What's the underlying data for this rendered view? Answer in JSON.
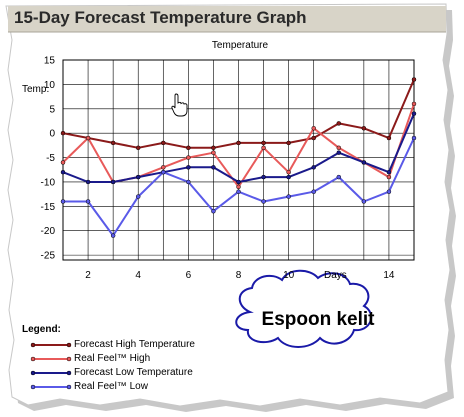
{
  "header": {
    "title": "15-Day Forecast Temperature Graph"
  },
  "legend": {
    "title": "Legend:",
    "items": [
      {
        "label": "Forecast High Temperature",
        "color": "#8b1a1a"
      },
      {
        "label": "Real Feel™ High",
        "color": "#e85a5a"
      },
      {
        "label": "Forecast Low Temperature",
        "color": "#1a1a8b"
      },
      {
        "label": "Real Feel™ Low",
        "color": "#5a5ae8"
      }
    ]
  },
  "callout": {
    "text": "Espoon kelit"
  },
  "chart_data": {
    "type": "line",
    "title": "Temperature",
    "ylabel": "Temp.",
    "xlabel": "Days",
    "xlim": [
      1,
      15
    ],
    "ylim": [
      -26,
      15
    ],
    "yticks": [
      15,
      10,
      5,
      0,
      -5,
      -10,
      -15,
      -20,
      -25
    ],
    "xticks": [
      2,
      4,
      6,
      8,
      10,
      14
    ],
    "grid": true,
    "legend_position": "bottom-left",
    "series": [
      {
        "name": "Forecast High Temperature",
        "color": "#8b1a1a",
        "x": [
          1,
          2,
          3,
          4,
          5,
          6,
          7,
          8,
          9,
          10,
          11,
          12,
          13,
          14,
          15
        ],
        "values": [
          0,
          -1,
          -2,
          -3,
          -2,
          -3,
          -3,
          -2,
          -2,
          -2,
          -1,
          2,
          1,
          -1,
          11
        ]
      },
      {
        "name": "Real Feel™ High",
        "color": "#e85a5a",
        "x": [
          1,
          2,
          3,
          4,
          5,
          6,
          7,
          8,
          9,
          10,
          11,
          12,
          13,
          14,
          15
        ],
        "values": [
          -6,
          -1,
          -10,
          -9,
          -7,
          -5,
          -4,
          -11,
          -3,
          -8,
          1,
          -3,
          -6,
          -9,
          6
        ]
      },
      {
        "name": "Forecast Low Temperature",
        "color": "#1a1a8b",
        "x": [
          1,
          2,
          3,
          4,
          5,
          6,
          7,
          8,
          9,
          10,
          11,
          12,
          13,
          14,
          15
        ],
        "values": [
          -8,
          -10,
          -10,
          -9,
          -8,
          -7,
          -7,
          -10,
          -9,
          -9,
          -7,
          -4,
          -6,
          -8,
          4
        ]
      },
      {
        "name": "Real Feel™ Low",
        "color": "#5a5ae8",
        "x": [
          1,
          2,
          3,
          4,
          5,
          6,
          7,
          8,
          9,
          10,
          11,
          12,
          13,
          14,
          15
        ],
        "values": [
          -14,
          -14,
          -21,
          -13,
          -8,
          -10,
          -16,
          -12,
          -14,
          -13,
          -12,
          -9,
          -14,
          -12,
          -1
        ]
      }
    ]
  }
}
